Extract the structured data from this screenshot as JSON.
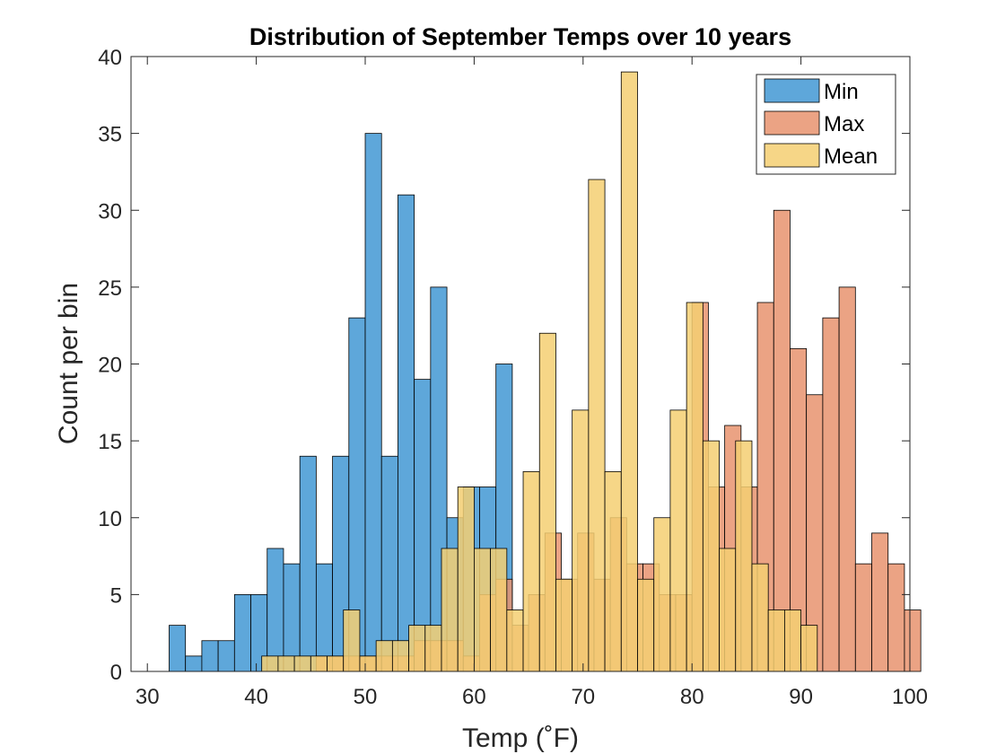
{
  "chart_data": {
    "type": "bar",
    "title": "Distribution of September Temps over 10 years",
    "xlabel": "Temp (˚F)",
    "ylabel": "Count per bin",
    "xlim": [
      28.5,
      100
    ],
    "ylim": [
      0,
      40
    ],
    "xticks": [
      30,
      40,
      50,
      60,
      70,
      80,
      90,
      100
    ],
    "yticks": [
      0,
      5,
      10,
      15,
      20,
      25,
      30,
      35,
      40
    ],
    "bin_width": 1.5,
    "grid": false,
    "legend_position": "top-right",
    "series": [
      {
        "name": "Min",
        "color": "#0072BD",
        "fill": "#5EA7DA",
        "x0": 32,
        "values": [
          3,
          1,
          2,
          2,
          5,
          5,
          8,
          7,
          14,
          7,
          14,
          23,
          35,
          14,
          31,
          19,
          25,
          10,
          12,
          12,
          20
        ]
      },
      {
        "name": "Max",
        "color": "#D95319",
        "fill": "#E8936E",
        "x0": 45.5,
        "values": [
          1,
          1,
          1,
          1,
          1,
          1,
          2,
          2,
          2,
          1,
          5,
          6,
          3,
          5,
          9,
          6,
          9,
          6,
          10,
          7,
          7,
          5,
          5,
          24,
          12,
          16,
          12,
          24,
          30,
          21,
          18,
          23,
          25,
          7,
          9,
          7,
          4
        ]
      },
      {
        "name": "Mean",
        "color": "#EDB120",
        "fill": "#F4CF72",
        "x0": 40.5,
        "values": [
          1,
          1,
          1,
          1,
          1,
          4,
          1,
          2,
          2,
          3,
          3,
          8,
          12,
          8,
          8,
          4,
          13,
          22,
          6,
          17,
          32,
          13,
          39,
          6,
          10,
          17,
          24,
          15,
          8,
          15,
          7,
          4,
          4,
          3
        ]
      }
    ]
  }
}
